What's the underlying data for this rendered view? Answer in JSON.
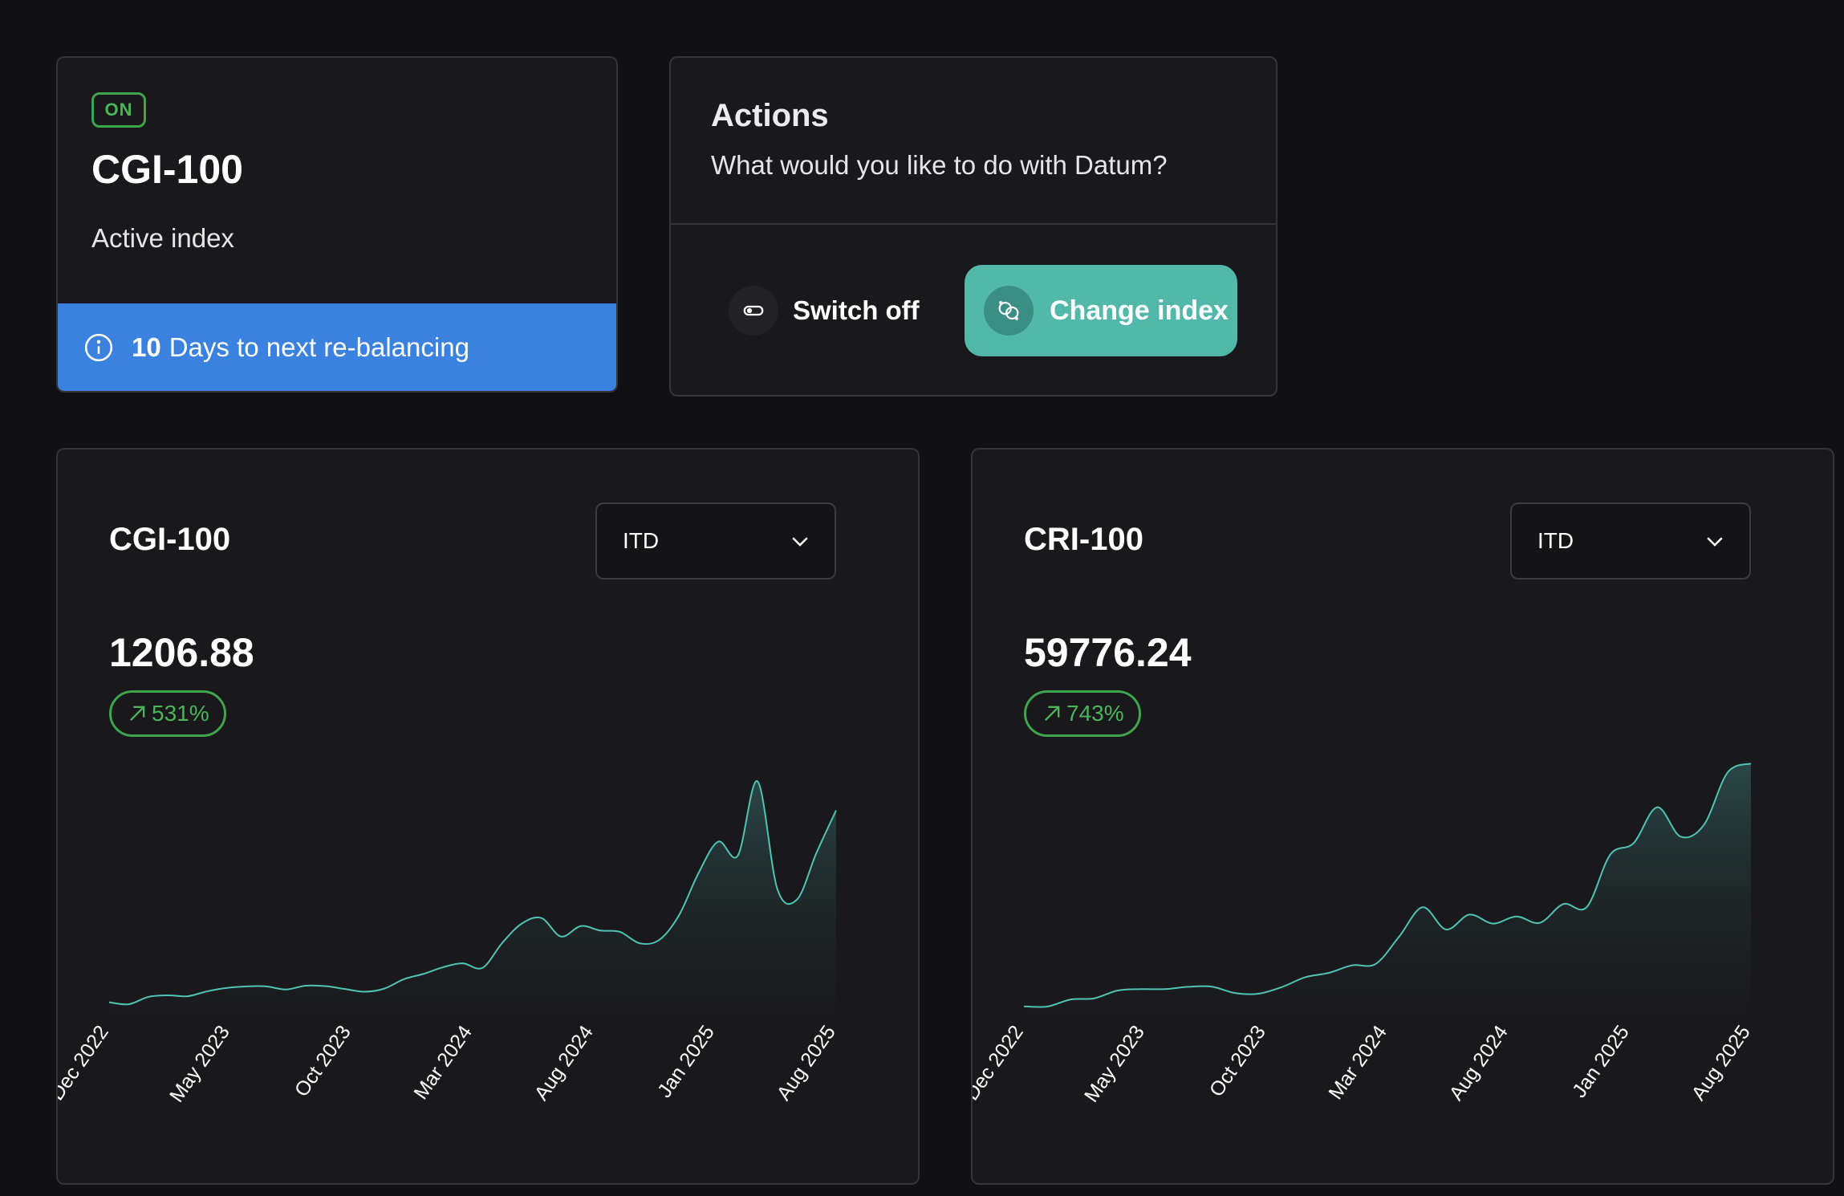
{
  "status_card": {
    "badge": "ON",
    "title": "CGI-100",
    "subtitle": "Active index",
    "rebalance_days": "10",
    "rebalance_text": "Days to next re-balancing"
  },
  "actions": {
    "title": "Actions",
    "subtitle": "What would you like to do with Datum?",
    "switch_off_label": "Switch off",
    "change_index_label": "Change index"
  },
  "colors": {
    "accent": "#52b8aa",
    "info_blue": "#3b82e0",
    "positive_green": "#4bb55a",
    "line": "#4fc4b4"
  },
  "chart_data": [
    {
      "type": "area",
      "title": "CGI-100",
      "period": "ITD",
      "value": "1206.88",
      "change": "531%",
      "x_ticks": [
        "Dec 2022",
        "May 2023",
        "Oct 2023",
        "Mar 2024",
        "Aug 2024",
        "Jan 2025",
        "Aug 2025"
      ],
      "ylim": [
        150,
        1300
      ],
      "y": [
        191,
        182,
        215,
        222,
        218,
        240,
        255,
        262,
        262,
        248,
        265,
        263,
        250,
        238,
        252,
        294,
        318,
        348,
        365,
        345,
        456,
        543,
        568,
        485,
        532,
        512,
        506,
        455,
        470,
        580,
        770,
        910,
        848,
        1180,
        700,
        650,
        860,
        1050
      ]
    },
    {
      "type": "area",
      "title": "CRI-100",
      "period": "ITD",
      "value": "59776.24",
      "change": "743%",
      "x_ticks": [
        "Dec 2022",
        "May 2023",
        "Oct 2023",
        "Mar 2024",
        "Aug 2024",
        "Jan 2025",
        "Aug 2025"
      ],
      "ylim": [
        6000,
        62000
      ],
      "y": [
        7100,
        7050,
        8600,
        8850,
        10550,
        10850,
        10850,
        11350,
        11400,
        10000,
        9850,
        11300,
        13450,
        14400,
        16050,
        16350,
        22300,
        28700,
        23850,
        27100,
        25150,
        26700,
        25300,
        29400,
        28750,
        40150,
        42700,
        50500,
        44100,
        46700,
        58050,
        60050
      ]
    }
  ]
}
